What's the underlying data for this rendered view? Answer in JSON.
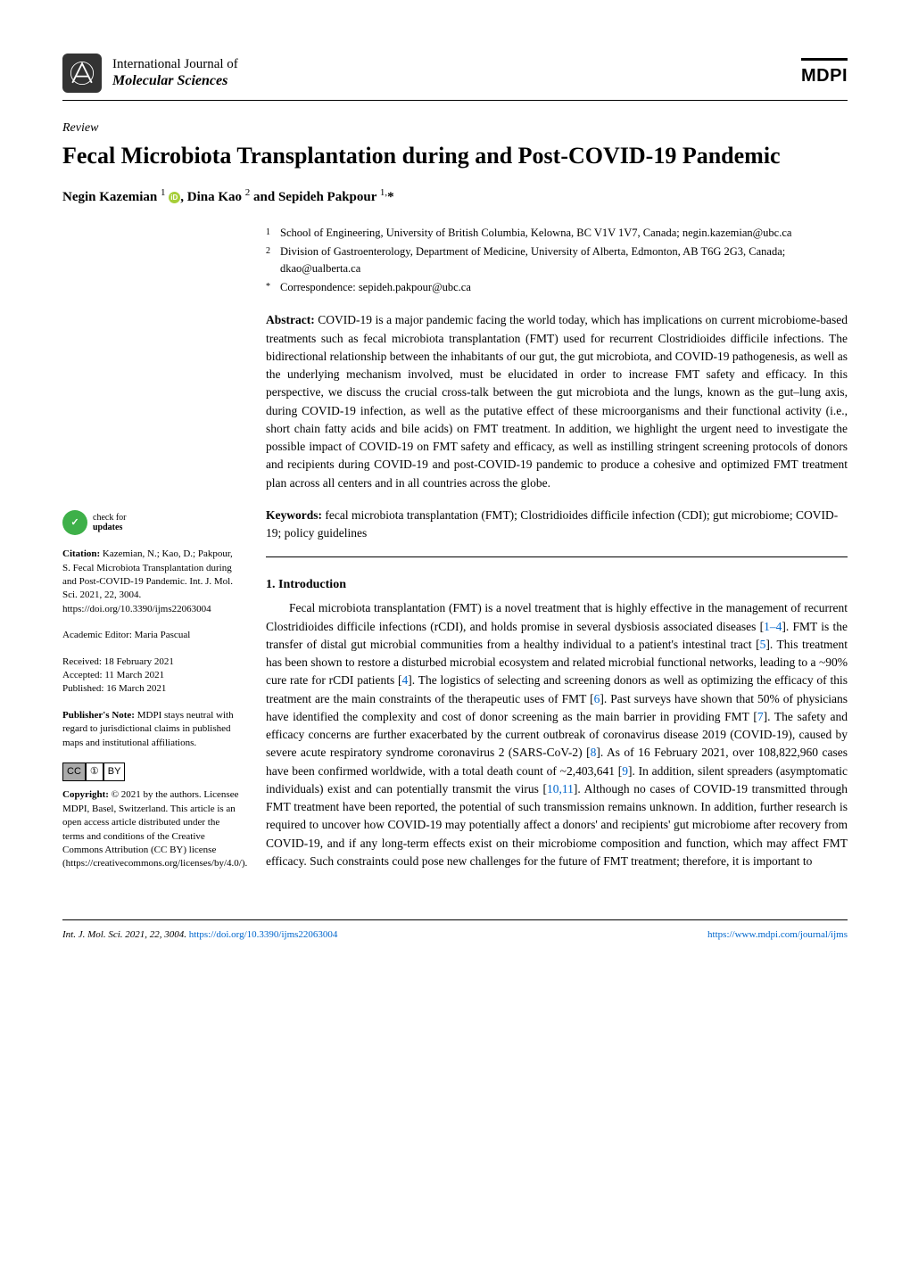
{
  "journal": {
    "name1": "International Journal of",
    "name2": "Molecular Sciences",
    "publisher": "MDPI"
  },
  "article": {
    "type": "Review",
    "title": "Fecal Microbiota Transplantation during and Post-COVID-19 Pandemic",
    "authors_html": "Negin Kazemian <sup>1</sup> <span class='orcid'></span>, Dina Kao <sup>2</sup> and Sepideh Pakpour <sup>1,</sup>*"
  },
  "affiliations": {
    "a1_sup": "1",
    "a1": "School of Engineering, University of British Columbia, Kelowna, BC V1V 1V7, Canada; negin.kazemian@ubc.ca",
    "a2_sup": "2",
    "a2": "Division of Gastroenterology, Department of Medicine, University of Alberta, Edmonton, AB T6G 2G3, Canada; dkao@ualberta.ca",
    "corr_sup": "*",
    "corr": "Correspondence: sepideh.pakpour@ubc.ca"
  },
  "abstract": {
    "label": "Abstract:",
    "text": " COVID-19 is a major pandemic facing the world today, which has implications on current microbiome-based treatments such as fecal microbiota transplantation (FMT) used for recurrent Clostridioides difficile infections. The bidirectional relationship between the inhabitants of our gut, the gut microbiota, and COVID-19 pathogenesis, as well as the underlying mechanism involved, must be elucidated in order to increase FMT safety and efficacy. In this perspective, we discuss the crucial cross-talk between the gut microbiota and the lungs, known as the gut–lung axis, during COVID-19 infection, as well as the putative effect of these microorganisms and their functional activity (i.e., short chain fatty acids and bile acids) on FMT treatment. In addition, we highlight the urgent need to investigate the possible impact of COVID-19 on FMT safety and efficacy, as well as instilling stringent screening protocols of donors and recipients during COVID-19 and post-COVID-19 pandemic to produce a cohesive and optimized FMT treatment plan across all centers and in all countries across the globe."
  },
  "keywords": {
    "label": "Keywords:",
    "text": " fecal microbiota transplantation (FMT); Clostridioides difficile infection (CDI); gut microbiome; COVID-19; policy guidelines"
  },
  "section1": {
    "heading": "1. Introduction",
    "body": "Fecal microbiota transplantation (FMT) is a novel treatment that is highly effective in the management of recurrent Clostridioides difficile infections (rCDI), and holds promise in several dysbiosis associated diseases [1–4]. FMT is the transfer of distal gut microbial communities from a healthy individual to a patient's intestinal tract [5]. This treatment has been shown to restore a disturbed microbial ecosystem and related microbial functional networks, leading to a ~90% cure rate for rCDI patients [4]. The logistics of selecting and screening donors as well as optimizing the efficacy of this treatment are the main constraints of the therapeutic uses of FMT [6]. Past surveys have shown that 50% of physicians have identified the complexity and cost of donor screening as the main barrier in providing FMT [7]. The safety and efficacy concerns are further exacerbated by the current outbreak of coronavirus disease 2019 (COVID-19), caused by severe acute respiratory syndrome coronavirus 2 (SARS-CoV-2) [8]. As of 16 February 2021, over 108,822,960 cases have been confirmed worldwide, with a total death count of ~2,403,641 [9]. In addition, silent spreaders (asymptomatic individuals) exist and can potentially transmit the virus [10,11]. Although no cases of COVID-19 transmitted through FMT treatment have been reported, the potential of such transmission remains unknown. In addition, further research is required to uncover how COVID-19 may potentially affect a donors' and recipients' gut microbiome after recovery from COVID-19, and if any long-term effects exist on their microbiome composition and function, which may affect FMT efficacy. Such constraints could pose new challenges for the future of FMT treatment; therefore, it is important to"
  },
  "sidebar": {
    "check_updates_line1": "check for",
    "check_updates_line2": "updates",
    "citation_label": "Citation:",
    "citation": " Kazemian, N.; Kao, D.; Pakpour, S. Fecal Microbiota Transplantation during and Post-COVID-19 Pandemic. Int. J. Mol. Sci. 2021, 22, 3004. https://doi.org/10.3390/ijms22063004",
    "editor": "Academic Editor: Maria Pascual",
    "received": "Received: 18 February 2021",
    "accepted": "Accepted: 11 March 2021",
    "published": "Published: 16 March 2021",
    "publishers_note_label": "Publisher's Note:",
    "publishers_note": " MDPI stays neutral with regard to jurisdictional claims in published maps and institutional affiliations.",
    "copyright_label": "Copyright:",
    "copyright": " © 2021 by the authors. Licensee MDPI, Basel, Switzerland. This article is an open access article distributed under the terms and conditions of the Creative Commons Attribution (CC BY) license (https://creativecommons.org/licenses/by/4.0/)."
  },
  "footer": {
    "citation": "Int. J. Mol. Sci. 2021, 22, 3004. ",
    "doi": "https://doi.org/10.3390/ijms22063004",
    "link": "https://www.mdpi.com/journal/ijms"
  },
  "colors": {
    "background": "#ffffff",
    "text": "#000000",
    "link": "#0066cc",
    "orcid": "#a6ce39",
    "check_icon": "#3eb049"
  }
}
